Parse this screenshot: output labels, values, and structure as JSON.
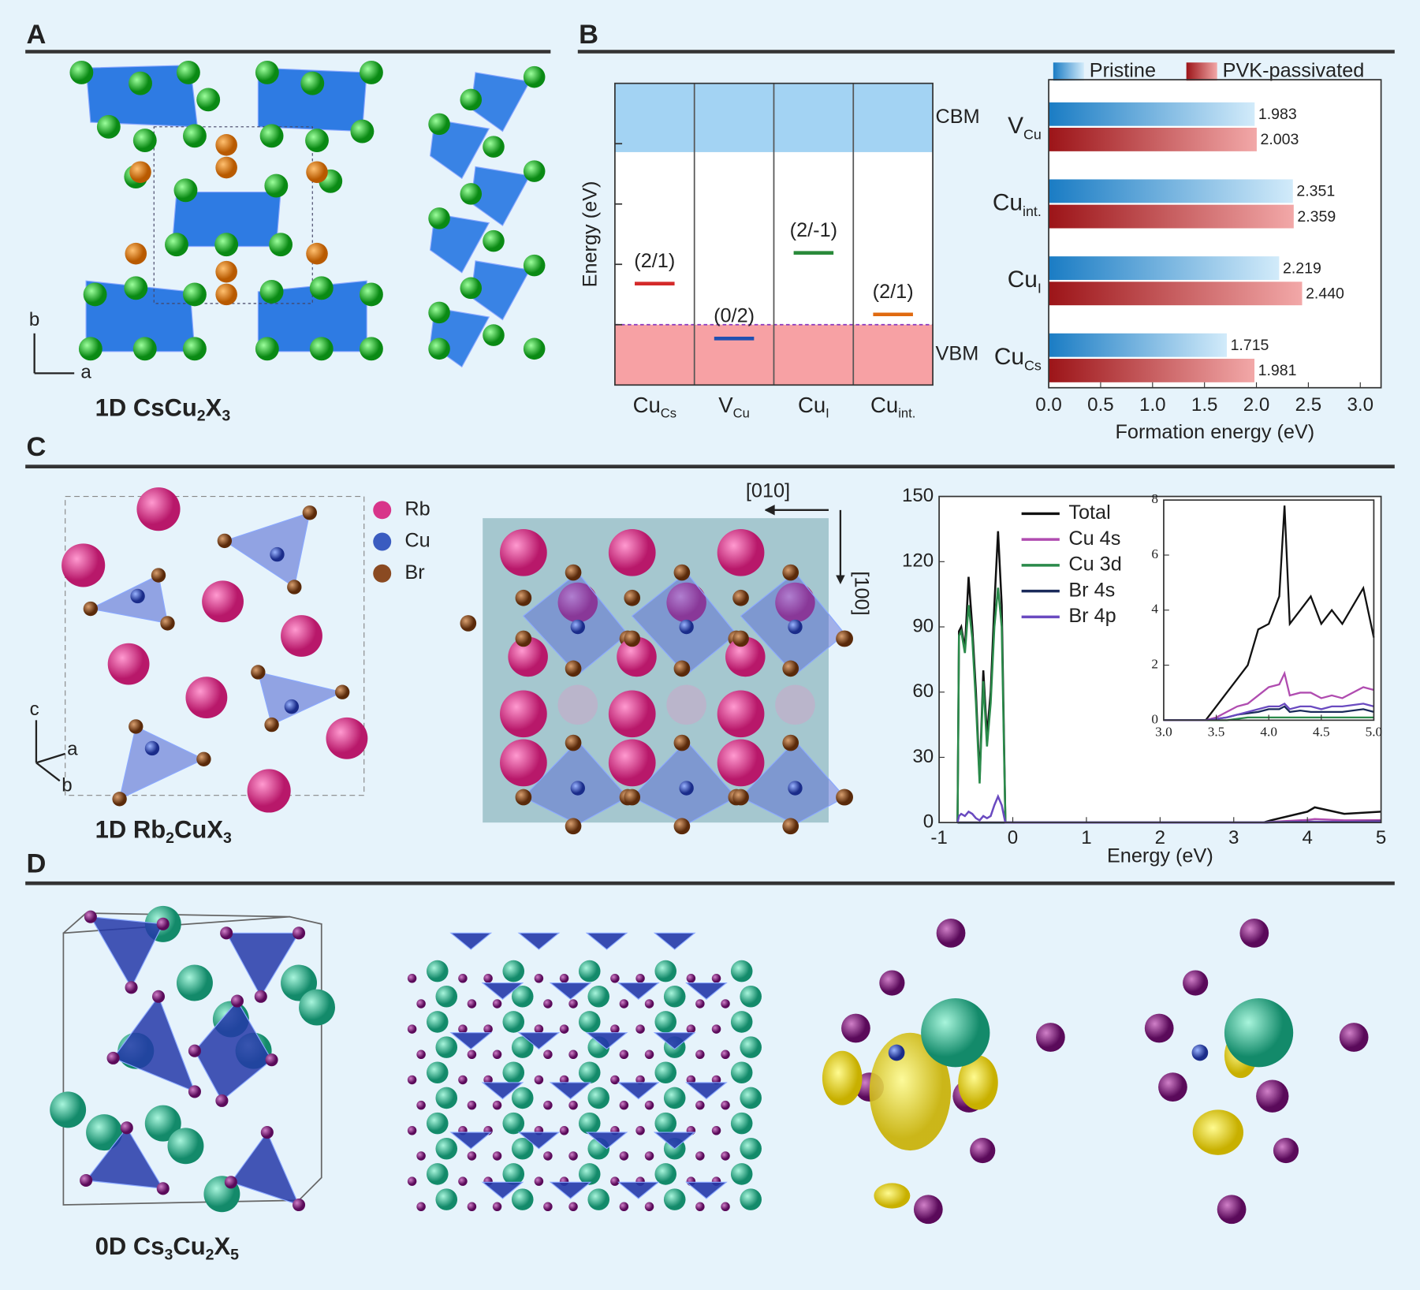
{
  "panel_labels": [
    "A",
    "B",
    "C",
    "D"
  ],
  "captions": [
    [
      "1D CsCu",
      "2",
      "X",
      "3"
    ],
    [
      "1D Rb",
      "2",
      "CuX",
      "3"
    ],
    [
      "0D Cs",
      "3",
      "Cu",
      "2",
      "X",
      "5"
    ]
  ],
  "axis_letters": {
    "A": [
      "b",
      "a"
    ],
    "C": [
      "c",
      "a",
      "b"
    ]
  },
  "species_legend": [
    {
      "name": "Rb",
      "color": "#d8358a"
    },
    {
      "name": "Cu",
      "color": "#3a5cc0"
    },
    {
      "name": "Br",
      "color": "#8a4a22"
    }
  ],
  "directions": [
    "[010]",
    "[100]"
  ],
  "chart_data": [
    {
      "type": "level",
      "ylabel": "Energy (eV)",
      "ylim": [
        0,
        5
      ],
      "ytick_marks": [
        1,
        2,
        3,
        4
      ],
      "bands": [
        {
          "name": "CBM",
          "range": [
            3.86,
            5
          ],
          "color": "#a3d3f3"
        },
        {
          "name": "VBM",
          "range": [
            0,
            1
          ],
          "color": "#f7a1a4"
        }
      ],
      "categories": [
        {
          "base": "Cu",
          "sub": "Cs"
        },
        {
          "base": "V",
          "sub": "Cu"
        },
        {
          "base": "Cu",
          "sub": "I"
        },
        {
          "base": "Cu",
          "sub": "int."
        }
      ],
      "values": [
        1.68,
        0.77,
        2.19,
        1.17
      ],
      "level_labels": [
        "(2/1)",
        "(0/2)",
        "(2/-1)",
        "(2/1)"
      ],
      "colors": [
        "#d42a2a",
        "#2050b0",
        "#2a8a3a",
        "#e06a10"
      ]
    },
    {
      "type": "hbar",
      "xlabel": "Formation energy (eV)",
      "xlim": [
        0,
        3.2
      ],
      "xticks": [
        {
          "value": 0,
          "label": "0.0"
        },
        0.5,
        {
          "value": 1,
          "label": "1.0"
        },
        1.5,
        {
          "value": 2,
          "label": "2.0"
        },
        2.5,
        {
          "value": 3,
          "label": "3.0"
        }
      ],
      "categories": [
        {
          "base": "V",
          "sub": "Cu"
        },
        {
          "base": "Cu",
          "sub": "int."
        },
        {
          "base": "Cu",
          "sub": "I"
        },
        {
          "base": "Cu",
          "sub": "Cs"
        }
      ],
      "series": [
        {
          "name": "Pristine",
          "color": [
            "#1a7cc4",
            "#d2ebfa"
          ],
          "values": [
            1.983,
            2.351,
            2.219,
            1.715
          ],
          "value_labels": [
            "1.983",
            "2.351",
            "2.219",
            "1.715"
          ]
        },
        {
          "name": "PVK-passivated",
          "color": [
            "#9c1418",
            "#f2a8a8"
          ],
          "values": [
            2.003,
            2.359,
            2.44,
            1.981
          ],
          "value_labels": [
            "2.003",
            "2.359",
            "2.440",
            "1.981"
          ]
        }
      ]
    },
    {
      "type": "line",
      "xlabel": "Energy (eV)",
      "xlim": [
        -1,
        5
      ],
      "ylim": [
        0,
        150
      ],
      "xticks": [
        -1,
        0,
        1,
        2,
        3,
        4,
        5
      ],
      "yticks": [
        0,
        30,
        60,
        90,
        120,
        150
      ],
      "x": [
        -0.75,
        -0.73,
        -0.7,
        -0.65,
        -0.6,
        -0.55,
        -0.5,
        -0.45,
        -0.4,
        -0.35,
        -0.3,
        -0.25,
        -0.2,
        -0.15,
        -0.12,
        -0.1,
        0,
        3.4,
        3.5,
        4.0,
        4.1,
        4.5,
        5.0
      ],
      "series": [
        {
          "name": "Total",
          "color": "#111111",
          "values": [
            0,
            88,
            90,
            80,
            113,
            90,
            60,
            20,
            70,
            40,
            60,
            100,
            134,
            100,
            40,
            0,
            0,
            0,
            1,
            5,
            7,
            4,
            5
          ]
        },
        {
          "name": "Cu 4s",
          "color": "#b04cb0",
          "values": [
            0,
            0,
            0,
            0,
            0,
            0,
            0,
            0,
            0,
            0,
            0,
            0,
            0,
            0,
            0,
            0,
            0,
            0,
            0.3,
            1.2,
            1.6,
            1,
            1.1
          ]
        },
        {
          "name": "Cu 3d",
          "color": "#2a8a4a",
          "values": [
            0,
            86,
            88,
            78,
            100,
            85,
            55,
            18,
            65,
            35,
            55,
            90,
            108,
            90,
            35,
            0,
            0,
            0,
            0.2,
            0.3,
            0.3,
            0.2,
            0.2
          ]
        },
        {
          "name": "Br 4s",
          "color": "#1a2a5a",
          "values": [
            0,
            0,
            0,
            0,
            0,
            0,
            0,
            0,
            0,
            0,
            0,
            0,
            0,
            0,
            0,
            0,
            0,
            0,
            0.1,
            0.4,
            0.4,
            0.3,
            0.5
          ]
        },
        {
          "name": "Br 4p",
          "color": "#6a4ac0",
          "values": [
            0,
            3,
            4,
            3,
            5,
            4,
            2,
            1,
            3,
            2,
            3,
            8,
            12,
            8,
            3,
            0,
            0,
            0,
            0.1,
            0.2,
            0.3,
            0.2,
            0.3
          ]
        }
      ]
    },
    {
      "type": "line",
      "xlim": [
        3,
        5
      ],
      "ylim": [
        0,
        8
      ],
      "xticks": [
        {
          "value": 3,
          "label": "3.0"
        },
        3.5,
        {
          "value": 4,
          "label": "4.0"
        },
        4.5,
        {
          "value": 5,
          "label": "5.0"
        }
      ],
      "yticks": [
        0,
        2,
        4,
        6,
        8
      ],
      "x": [
        3.0,
        3.4,
        3.5,
        3.6,
        3.7,
        3.8,
        3.9,
        4.0,
        4.1,
        4.15,
        4.2,
        4.3,
        4.4,
        4.5,
        4.6,
        4.7,
        4.9,
        5.0
      ],
      "series": [
        {
          "color": "#111111",
          "values": [
            0,
            0,
            0.5,
            1,
            1.5,
            2,
            3.3,
            3.5,
            4.5,
            7.8,
            3.5,
            4,
            4.5,
            3.5,
            4,
            3.5,
            4.8,
            3
          ]
        },
        {
          "color": "#b04cb0",
          "values": [
            0,
            0,
            0.1,
            0.3,
            0.5,
            0.6,
            0.9,
            1.2,
            1.3,
            1.7,
            0.9,
            1,
            1,
            0.8,
            0.9,
            0.8,
            1.2,
            1.1
          ]
        },
        {
          "color": "#2a8a4a",
          "values": [
            0,
            0,
            0,
            0,
            0.05,
            0.1,
            0.1,
            0.1,
            0.1,
            0.1,
            0.1,
            0.1,
            0.1,
            0.1,
            0.1,
            0.1,
            0.1,
            0.1
          ]
        },
        {
          "color": "#1a2a5a",
          "values": [
            0,
            0,
            0.05,
            0.1,
            0.2,
            0.25,
            0.3,
            0.4,
            0.4,
            0.5,
            0.3,
            0.35,
            0.3,
            0.3,
            0.3,
            0.3,
            0.4,
            0.3
          ]
        },
        {
          "color": "#6a4ac0",
          "values": [
            0,
            0,
            0.05,
            0.1,
            0.2,
            0.3,
            0.4,
            0.5,
            0.5,
            0.6,
            0.4,
            0.5,
            0.5,
            0.4,
            0.5,
            0.5,
            0.6,
            0.5
          ]
        }
      ]
    }
  ]
}
